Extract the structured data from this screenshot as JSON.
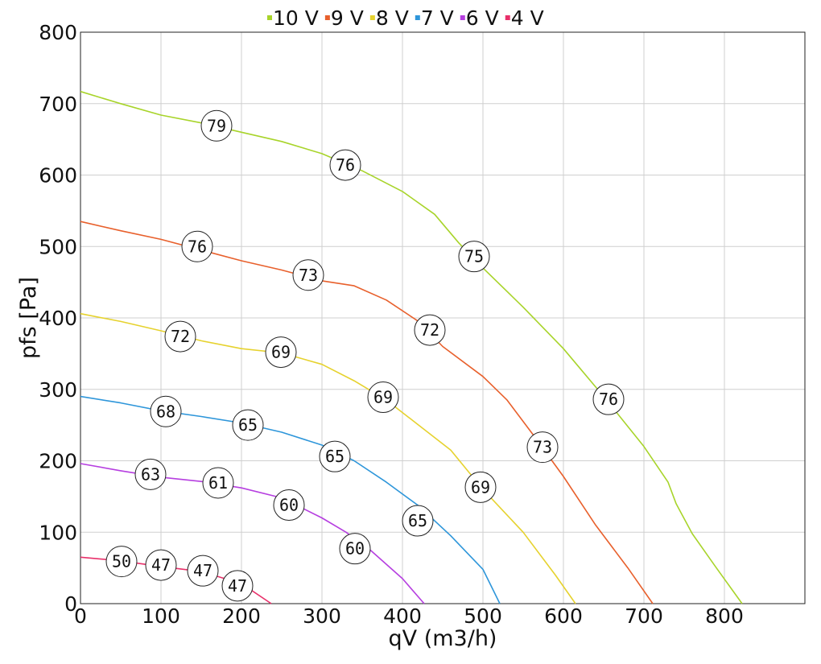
{
  "chart_data": {
    "type": "line",
    "title": "",
    "xlabel": "qV (m3/h)",
    "ylabel": "pfs [Pa]",
    "xlim": [
      0,
      900
    ],
    "ylim": [
      0,
      800
    ],
    "x_ticks": [
      "0",
      "100",
      "200",
      "300",
      "400",
      "500",
      "600",
      "700",
      "800"
    ],
    "y_ticks": [
      "0",
      "100",
      "200",
      "300",
      "400",
      "500",
      "600",
      "700",
      "800"
    ],
    "grid": true,
    "legend_position": "top-center",
    "series": [
      {
        "name": "10 V",
        "color": "#a8d42a",
        "points": [
          [
            0,
            717
          ],
          [
            50,
            700
          ],
          [
            100,
            684
          ],
          [
            150,
            673
          ],
          [
            200,
            660
          ],
          [
            250,
            647
          ],
          [
            300,
            630
          ],
          [
            350,
            606
          ],
          [
            400,
            577
          ],
          [
            440,
            545
          ],
          [
            470,
            505
          ],
          [
            500,
            470
          ],
          [
            550,
            415
          ],
          [
            600,
            357
          ],
          [
            650,
            290
          ],
          [
            700,
            220
          ],
          [
            730,
            170
          ],
          [
            740,
            140
          ],
          [
            760,
            98
          ],
          [
            790,
            50
          ],
          [
            822,
            0
          ]
        ],
        "markers": [
          {
            "x": 169,
            "y": 669,
            "label": "79"
          },
          {
            "x": 329,
            "y": 614,
            "label": "76"
          },
          {
            "x": 489,
            "y": 486,
            "label": "75"
          },
          {
            "x": 656,
            "y": 286,
            "label": "76"
          }
        ]
      },
      {
        "name": "9 V",
        "color": "#e8602c",
        "points": [
          [
            0,
            535
          ],
          [
            50,
            522
          ],
          [
            100,
            510
          ],
          [
            150,
            495
          ],
          [
            200,
            480
          ],
          [
            250,
            467
          ],
          [
            300,
            452
          ],
          [
            340,
            445
          ],
          [
            380,
            425
          ],
          [
            420,
            395
          ],
          [
            450,
            360
          ],
          [
            500,
            318
          ],
          [
            530,
            285
          ],
          [
            560,
            240
          ],
          [
            600,
            178
          ],
          [
            640,
            110
          ],
          [
            680,
            50
          ],
          [
            711,
            0
          ]
        ],
        "markers": [
          {
            "x": 145,
            "y": 500,
            "label": "76"
          },
          {
            "x": 283,
            "y": 460,
            "label": "73"
          },
          {
            "x": 434,
            "y": 383,
            "label": "72"
          },
          {
            "x": 574,
            "y": 219,
            "label": "73"
          }
        ]
      },
      {
        "name": "8 V",
        "color": "#e6d22e",
        "points": [
          [
            0,
            406
          ],
          [
            50,
            395
          ],
          [
            100,
            382
          ],
          [
            150,
            368
          ],
          [
            200,
            357
          ],
          [
            250,
            351
          ],
          [
            300,
            335
          ],
          [
            340,
            312
          ],
          [
            380,
            285
          ],
          [
            420,
            250
          ],
          [
            460,
            215
          ],
          [
            500,
            160
          ],
          [
            550,
            100
          ],
          [
            590,
            40
          ],
          [
            615,
            0
          ]
        ],
        "markers": [
          {
            "x": 124,
            "y": 374,
            "label": "72"
          },
          {
            "x": 249,
            "y": 352,
            "label": "69"
          },
          {
            "x": 376,
            "y": 289,
            "label": "69"
          },
          {
            "x": 497,
            "y": 163,
            "label": "69"
          }
        ]
      },
      {
        "name": "7 V",
        "color": "#2e96da",
        "points": [
          [
            0,
            290
          ],
          [
            50,
            281
          ],
          [
            100,
            270
          ],
          [
            150,
            262
          ],
          [
            200,
            253
          ],
          [
            250,
            240
          ],
          [
            300,
            222
          ],
          [
            340,
            200
          ],
          [
            380,
            170
          ],
          [
            420,
            137
          ],
          [
            460,
            95
          ],
          [
            500,
            48
          ],
          [
            521,
            0
          ]
        ],
        "markers": [
          {
            "x": 106,
            "y": 269,
            "label": "68"
          },
          {
            "x": 208,
            "y": 250,
            "label": "65"
          },
          {
            "x": 316,
            "y": 206,
            "label": "65"
          },
          {
            "x": 419,
            "y": 116,
            "label": "65"
          }
        ]
      },
      {
        "name": "6 V",
        "color": "#b63fe0",
        "points": [
          [
            0,
            196
          ],
          [
            50,
            186
          ],
          [
            100,
            177
          ],
          [
            150,
            171
          ],
          [
            200,
            162
          ],
          [
            250,
            148
          ],
          [
            300,
            120
          ],
          [
            330,
            100
          ],
          [
            360,
            75
          ],
          [
            400,
            35
          ],
          [
            427,
            0
          ]
        ],
        "markers": [
          {
            "x": 87,
            "y": 181,
            "label": "63"
          },
          {
            "x": 171,
            "y": 169,
            "label": "61"
          },
          {
            "x": 259,
            "y": 138,
            "label": "60"
          },
          {
            "x": 341,
            "y": 77,
            "label": "60"
          }
        ]
      },
      {
        "name": "4 V",
        "color": "#e8306a",
        "points": [
          [
            0,
            65
          ],
          [
            50,
            60
          ],
          [
            100,
            52
          ],
          [
            150,
            45
          ],
          [
            200,
            28
          ],
          [
            237,
            0
          ]
        ],
        "markers": [
          {
            "x": 51,
            "y": 59,
            "label": "50"
          },
          {
            "x": 100,
            "y": 54,
            "label": "47"
          },
          {
            "x": 152,
            "y": 46,
            "label": "47"
          },
          {
            "x": 195,
            "y": 25,
            "label": "47"
          }
        ]
      }
    ]
  }
}
